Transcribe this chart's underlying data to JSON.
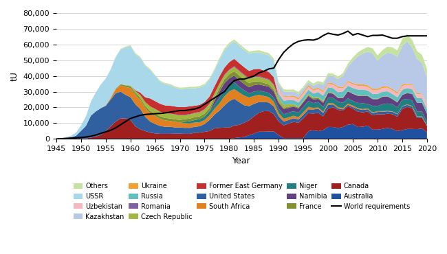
{
  "years": [
    1945,
    1946,
    1947,
    1948,
    1949,
    1950,
    1951,
    1952,
    1953,
    1954,
    1955,
    1956,
    1957,
    1958,
    1959,
    1960,
    1961,
    1962,
    1963,
    1964,
    1965,
    1966,
    1967,
    1968,
    1969,
    1970,
    1971,
    1972,
    1973,
    1974,
    1975,
    1976,
    1977,
    1978,
    1979,
    1980,
    1981,
    1982,
    1983,
    1984,
    1985,
    1986,
    1987,
    1988,
    1989,
    1990,
    1991,
    1992,
    1993,
    1994,
    1995,
    1996,
    1997,
    1998,
    1999,
    2000,
    2001,
    2002,
    2003,
    2004,
    2005,
    2006,
    2007,
    2008,
    2009,
    2010,
    2011,
    2012,
    2013,
    2014,
    2015,
    2016,
    2017,
    2018,
    2019,
    2020
  ],
  "series": {
    "Australia": [
      0,
      0,
      0,
      0,
      0,
      0,
      0,
      0,
      0,
      0,
      0,
      0,
      0,
      0,
      0,
      0,
      0,
      0,
      0,
      0,
      0,
      0,
      0,
      0,
      0,
      0,
      0,
      0,
      0,
      0,
      0,
      0,
      0,
      0,
      0,
      0,
      500,
      900,
      1200,
      2300,
      3300,
      4600,
      4600,
      4700,
      4700,
      2300,
      500,
      500,
      500,
      500,
      500,
      4900,
      5500,
      4900,
      5600,
      7580,
      7570,
      6854,
      7572,
      8982,
      9430,
      7555,
      7728,
      8430,
      5900,
      5900,
      6350,
      6991,
      6350,
      5001,
      5559,
      6315,
      6315,
      6203,
      6613,
      4193
    ],
    "Canada": [
      0,
      0,
      0,
      0,
      0,
      100,
      300,
      800,
      1500,
      2500,
      5000,
      8000,
      11000,
      13000,
      13000,
      12000,
      8000,
      6000,
      5000,
      4000,
      3500,
      3200,
      3200,
      3200,
      3300,
      3300,
      3200,
      3200,
      3900,
      4000,
      4500,
      5000,
      6700,
      7000,
      7200,
      7200,
      8000,
      8000,
      9000,
      9500,
      11000,
      12000,
      13000,
      13000,
      11000,
      8700,
      8100,
      9200,
      10300,
      9700,
      12600,
      11400,
      10600,
      11600,
      8700,
      11600,
      12600,
      11600,
      10400,
      11800,
      9783,
      9783,
      9145,
      9001,
      9000,
      9783,
      9146,
      8999,
      9334,
      9134,
      13325,
      14039,
      13116,
      7001,
      6938,
      3885
    ],
    "United States": [
      0,
      100,
      500,
      1000,
      2000,
      5000,
      8000,
      14000,
      16000,
      17000,
      16000,
      17000,
      18000,
      17000,
      15000,
      14500,
      14000,
      13000,
      9000,
      7000,
      6000,
      5000,
      4500,
      4500,
      4000,
      4000,
      3800,
      3800,
      3800,
      4000,
      5000,
      7000,
      8700,
      11000,
      14000,
      16800,
      17000,
      14500,
      11200,
      9000,
      8000,
      6800,
      5900,
      5400,
      5000,
      3400,
      2400,
      2300,
      2300,
      2200,
      2340,
      2500,
      2600,
      2700,
      2200,
      2550,
      1672,
      919,
      779,
      878,
      1039,
      1654,
      1537,
      1430,
      1430,
      1430,
      1756,
      1537,
      1537,
      1483,
      1690,
      1256,
      1125,
      940,
      582,
      170,
      482
    ],
    "South Africa": [
      0,
      0,
      0,
      0,
      0,
      0,
      0,
      0,
      0,
      100,
      300,
      1000,
      2500,
      4000,
      5000,
      5800,
      6000,
      5700,
      5500,
      5200,
      5000,
      4500,
      4000,
      3700,
      3500,
      3200,
      3000,
      2800,
      2700,
      2600,
      2500,
      3000,
      3700,
      4500,
      5800,
      6200,
      6100,
      6100,
      6100,
      5500,
      5000,
      4600,
      3800,
      3500,
      2900,
      2000,
      1800,
      1700,
      1600,
      1400,
      1600,
      1560,
      1000,
      800,
      800,
      878,
      758,
      824,
      758,
      758,
      879,
      600,
      534,
      534,
      453,
      563,
      395,
      309,
      309,
      251,
      251,
      346,
      346,
      322,
      251,
      251
    ],
    "Niger": [
      0,
      0,
      0,
      0,
      0,
      0,
      0,
      0,
      0,
      0,
      0,
      0,
      0,
      0,
      0,
      0,
      0,
      0,
      0,
      0,
      0,
      0,
      0,
      0,
      0,
      0,
      900,
      1400,
      1600,
      1900,
      2200,
      2600,
      2600,
      3600,
      4100,
      4100,
      4400,
      3700,
      3400,
      2700,
      2700,
      2700,
      2700,
      2700,
      2700,
      2900,
      2900,
      2900,
      2900,
      2900,
      3400,
      3714,
      3075,
      3434,
      3034,
      3434,
      3434,
      3434,
      3434,
      3434,
      3000,
      3300,
      3718,
      2863,
      4197,
      3243,
      4351,
      4667,
      4518,
      4057,
      4116,
      3479,
      3449,
      2911,
      2983,
      2020
    ],
    "Namibia": [
      0,
      0,
      0,
      0,
      0,
      0,
      0,
      0,
      0,
      0,
      0,
      0,
      0,
      0,
      0,
      0,
      0,
      0,
      0,
      0,
      0,
      0,
      0,
      0,
      0,
      0,
      0,
      0,
      0,
      0,
      0,
      0,
      2300,
      3900,
      4200,
      4200,
      4200,
      4200,
      4000,
      3800,
      4200,
      3900,
      3900,
      3900,
      3900,
      3500,
      3300,
      3100,
      2900,
      2700,
      2900,
      3200,
      2300,
      2000,
      2600,
      3200,
      2714,
      2333,
      3038,
      4366,
      4496,
      4537,
      4566,
      5041,
      4323,
      4320,
      4737,
      4517,
      3255,
      3255,
      2993,
      3654,
      4224,
      5525,
      5476,
      5413
    ],
    "France": [
      0,
      0,
      0,
      0,
      0,
      0,
      0,
      0,
      0,
      0,
      0,
      100,
      400,
      800,
      1000,
      1200,
      1400,
      1400,
      1400,
      1500,
      1500,
      1600,
      1600,
      1600,
      1600,
      1600,
      1600,
      1700,
      1800,
      1800,
      1900,
      2000,
      2000,
      2200,
      2400,
      2600,
      2800,
      2900,
      2800,
      2600,
      2300,
      2000,
      1700,
      1500,
      1200,
      900,
      800,
      700,
      600,
      500,
      500,
      700,
      700,
      700,
      700,
      0,
      0,
      0,
      0,
      0,
      0,
      0,
      0,
      0,
      0,
      0,
      0,
      0,
      0,
      0,
      0,
      0,
      0,
      0,
      0,
      0
    ],
    "Czech Republic": [
      0,
      0,
      0,
      0,
      0,
      0,
      0,
      0,
      0,
      0,
      0,
      0,
      0,
      0,
      200,
      500,
      1000,
      1800,
      2500,
      3000,
      3000,
      3000,
      3000,
      3000,
      3000,
      2800,
      2500,
      2500,
      2500,
      2500,
      2500,
      2500,
      2500,
      2600,
      2600,
      2600,
      2700,
      2700,
      2700,
      2700,
      2700,
      2800,
      2800,
      2800,
      2700,
      2100,
      1800,
      1600,
      1000,
      600,
      500,
      600,
      500,
      500,
      500,
      500,
      450,
      312,
      300,
      300,
      257,
      257,
      304,
      254,
      327,
      254,
      228,
      228,
      186,
      213,
      170,
      142,
      102,
      102,
      102
    ],
    "Romania": [
      0,
      0,
      0,
      0,
      0,
      0,
      0,
      0,
      0,
      0,
      0,
      0,
      0,
      0,
      0,
      0,
      0,
      0,
      0,
      0,
      0,
      0,
      0,
      100,
      200,
      300,
      300,
      300,
      300,
      300,
      300,
      300,
      300,
      300,
      400,
      400,
      500,
      500,
      500,
      500,
      500,
      500,
      500,
      500,
      500,
      300,
      200,
      100,
      100,
      100,
      100,
      100,
      77,
      77,
      77,
      90,
      90,
      77,
      77,
      90,
      90,
      90,
      77,
      77,
      77,
      77,
      77,
      77,
      77,
      77,
      77,
      77,
      69,
      69,
      69,
      69
    ],
    "Former East Germany": [
      0,
      0,
      0,
      0,
      0,
      0,
      0,
      0,
      0,
      0,
      0,
      0,
      0,
      0,
      0,
      0,
      500,
      1500,
      3000,
      5000,
      5000,
      5000,
      5000,
      5000,
      5000,
      5000,
      5000,
      5000,
      4500,
      4500,
      4500,
      4500,
      4500,
      4500,
      4500,
      4700,
      4700,
      4700,
      4700,
      4600,
      4600,
      4600,
      4600,
      4600,
      4600,
      0,
      0,
      0,
      0,
      0,
      0,
      0,
      0,
      0,
      0,
      0,
      0,
      0,
      0,
      0,
      0,
      0,
      0,
      0,
      0,
      0,
      0,
      0,
      0,
      0,
      0,
      0,
      0,
      0,
      0,
      0
    ],
    "Russia": [
      0,
      0,
      0,
      0,
      0,
      0,
      0,
      0,
      0,
      0,
      0,
      0,
      0,
      0,
      0,
      0,
      0,
      0,
      0,
      0,
      0,
      0,
      0,
      0,
      0,
      0,
      0,
      0,
      0,
      0,
      0,
      0,
      0,
      0,
      0,
      0,
      0,
      0,
      0,
      0,
      0,
      0,
      0,
      0,
      0,
      2500,
      2500,
      2500,
      2500,
      2500,
      2500,
      2500,
      2500,
      3000,
      3300,
      3000,
      3000,
      3300,
      3800,
      3200,
      3380,
      3562,
      3782,
      3135,
      2896,
      2993,
      2993,
      2904,
      3006,
      2990,
      3055,
      3004,
      2875,
      2904,
      2836,
      2846,
      2846
    ],
    "Uzbekistan": [
      0,
      0,
      0,
      0,
      0,
      0,
      0,
      0,
      0,
      0,
      0,
      0,
      0,
      0,
      0,
      0,
      0,
      0,
      0,
      0,
      0,
      0,
      0,
      0,
      0,
      0,
      0,
      0,
      0,
      0,
      0,
      0,
      0,
      0,
      0,
      0,
      0,
      0,
      0,
      0,
      0,
      0,
      0,
      0,
      0,
      2500,
      2300,
      2300,
      2000,
      2000,
      2000,
      2000,
      2016,
      2016,
      2160,
      2161,
      2270,
      2800,
      2016,
      2260,
      2385,
      2400,
      2400,
      2400,
      2400,
      2400,
      2385,
      2400,
      2385,
      2385,
      2385,
      2385,
      2385,
      2385,
      2385,
      2385,
      1500
    ],
    "Ukraine": [
      0,
      0,
      0,
      0,
      0,
      0,
      0,
      0,
      0,
      0,
      0,
      0,
      0,
      0,
      0,
      0,
      0,
      0,
      0,
      0,
      0,
      0,
      0,
      0,
      0,
      0,
      0,
      0,
      0,
      0,
      0,
      0,
      0,
      0,
      0,
      0,
      0,
      0,
      0,
      0,
      0,
      0,
      0,
      0,
      0,
      500,
      500,
      500,
      800,
      900,
      1000,
      1000,
      800,
      800,
      800,
      800,
      800,
      800,
      800,
      800,
      800,
      890,
      960,
      922,
      926,
      926,
      926,
      799,
      834,
      800,
      1005,
      550,
      680,
      801,
      455,
      555
    ],
    "Kazakhstan": [
      0,
      0,
      0,
      0,
      0,
      0,
      0,
      0,
      0,
      0,
      0,
      0,
      0,
      0,
      0,
      0,
      0,
      0,
      0,
      0,
      0,
      0,
      0,
      0,
      0,
      0,
      0,
      0,
      0,
      0,
      0,
      0,
      0,
      0,
      0,
      0,
      0,
      0,
      0,
      0,
      0,
      0,
      0,
      0,
      0,
      3000,
      3000,
      2500,
      2500,
      2500,
      1900,
      1670,
      2040,
      2760,
      3800,
      4400,
      4521,
      4779,
      7000,
      9000,
      14020,
      17803,
      19451,
      21317,
      22451,
      17803,
      19477,
      21317,
      22451,
      22451,
      24575,
      26766,
      23391,
      21705,
      19477,
      17351,
      19477
    ],
    "USSR": [
      100,
      300,
      700,
      1000,
      2000,
      3500,
      6000,
      9000,
      12000,
      15000,
      17000,
      18000,
      20000,
      22000,
      24000,
      25000,
      23000,
      22000,
      20000,
      18000,
      16000,
      14000,
      13500,
      13000,
      12000,
      11500,
      11500,
      11500,
      11000,
      11000,
      10500,
      10500,
      10000,
      10500,
      11000,
      11000,
      11000,
      11000,
      11000,
      11000,
      10500,
      10500,
      10500,
      10500,
      10500,
      0,
      0,
      0,
      0,
      0,
      0,
      0,
      0,
      0,
      0,
      0,
      0,
      0,
      0,
      0,
      0,
      0,
      0,
      0,
      0,
      0,
      0,
      0,
      0,
      0,
      0,
      0,
      0,
      0,
      0,
      0
    ],
    "Others": [
      0,
      0,
      0,
      0,
      0,
      0,
      0,
      0,
      0,
      0,
      100,
      200,
      300,
      400,
      500,
      600,
      700,
      700,
      700,
      700,
      700,
      700,
      700,
      800,
      800,
      900,
      900,
      900,
      1000,
      1000,
      1000,
      1100,
      1100,
      1200,
      1200,
      1300,
      1300,
      1300,
      1300,
      1300,
      1300,
      1400,
      1400,
      1400,
      1400,
      1400,
      1400,
      1400,
      1400,
      1400,
      1400,
      1500,
      1500,
      1500,
      1500,
      1600,
      1600,
      1600,
      1800,
      2000,
      2200,
      2500,
      2800,
      3000,
      3200,
      3400,
      3600,
      3800,
      4000,
      4200,
      4400,
      4600,
      4800,
      5000,
      5200,
      5400,
      5600
    ]
  },
  "world_requirements": [
    0,
    100,
    300,
    500,
    700,
    900,
    1200,
    1700,
    2500,
    3500,
    4500,
    5500,
    7000,
    9000,
    11000,
    13000,
    14000,
    15000,
    15500,
    15800,
    16000,
    16200,
    16500,
    17000,
    17500,
    18000,
    18000,
    18500,
    19000,
    20000,
    22000,
    24000,
    26000,
    28000,
    30000,
    34000,
    37000,
    38000,
    38000,
    39000,
    40000,
    42000,
    43000,
    44500,
    45000,
    50500,
    55000,
    58000,
    60500,
    62000,
    62700,
    63000,
    62800,
    63700,
    65700,
    67200,
    66500,
    66000,
    67000,
    68500,
    66000,
    67000,
    66000,
    65000,
    65800,
    65800,
    66000,
    65000,
    64000,
    64000,
    65000,
    65500,
    65500,
    65500,
    65500,
    65500,
    65500
  ],
  "colors": {
    "Others": "#c6e2a0",
    "USSR": "#a8d8ea",
    "Uzbekistan": "#f4b8c1",
    "Kazakhstan": "#b8c9e8",
    "Ukraine": "#f4a030",
    "Russia": "#60c0c0",
    "Romania": "#8060a0",
    "Czech Republic": "#a0b840",
    "Former East Germany": "#c83030",
    "United States": "#3060a0",
    "South Africa": "#e08020",
    "Niger": "#208080",
    "Namibia": "#604080",
    "France": "#809030",
    "Canada": "#a02020",
    "Australia": "#2050a0"
  },
  "stack_order": [
    "Australia",
    "Canada",
    "United States",
    "South Africa",
    "Niger",
    "Namibia",
    "France",
    "Czech Republic",
    "Romania",
    "Former East Germany",
    "Russia",
    "Uzbekistan",
    "Ukraine",
    "Kazakhstan",
    "USSR",
    "Others"
  ],
  "ylim": [
    0,
    80000
  ],
  "yticks": [
    0,
    10000,
    20000,
    30000,
    40000,
    50000,
    60000,
    70000,
    80000
  ],
  "xticks": [
    1945,
    1950,
    1955,
    1960,
    1965,
    1970,
    1975,
    1980,
    1985,
    1990,
    1995,
    2000,
    2005,
    2010,
    2015,
    2020
  ],
  "xlabel": "Year",
  "ylabel": "tU",
  "legend_order": [
    "Others",
    "USSR",
    "Uzbekistan",
    "Kazakhstan",
    "Ukraine",
    "Russia",
    "Romania",
    "Czech Republic",
    "Former East Germany",
    "United States",
    "South Africa",
    "Niger",
    "Namibia",
    "France",
    "Canada",
    "Australia",
    "World requirements"
  ]
}
